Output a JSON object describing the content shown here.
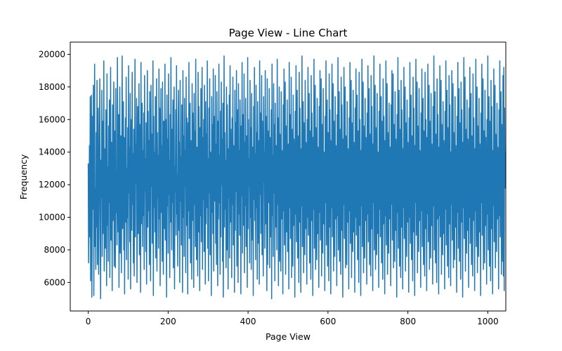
{
  "chart_data": {
    "type": "line",
    "title": "Page View - Line Chart",
    "xlabel": "Page View",
    "ylabel": "Frequency",
    "xlim": [
      -45,
      1045
    ],
    "ylim": [
      4250,
      20750
    ],
    "x_ticks": [
      0,
      200,
      400,
      600,
      800,
      1000
    ],
    "y_ticks": [
      6000,
      8000,
      10000,
      12000,
      14000,
      16000,
      18000,
      20000
    ],
    "grid": false,
    "legend": "none",
    "series": [
      {
        "color": "#1f77b4",
        "x_start": 0,
        "x_step": 1,
        "values": [
          13300,
          7200,
          9800,
          14400,
          8800,
          17400,
          6100,
          12600,
          17500,
          5100,
          9900,
          16200,
          10500,
          18100,
          5200,
          13800,
          19400,
          8200,
          11800,
          6800,
          15200,
          9400,
          18400,
          7100,
          12300,
          16700,
          6500,
          10600,
          14800,
          18500,
          8700,
          5000,
          13500,
          11200,
          17800,
          7600,
          15900,
          9000,
          12700,
          19600,
          6700,
          10200,
          14200,
          8100,
          16600,
          11900,
          5800,
          18800,
          9500,
          13100,
          7300,
          15600,
          10900,
          17200,
          6300,
          12000,
          19200,
          8600,
          14600,
          11400,
          5500,
          16900,
          9800,
          13700,
          18300,
          7000,
          11100,
          15300,
          6900,
          17900,
          10300,
          12900,
          8300,
          19800,
          14000,
          9100,
          16300,
          5700,
          12400,
          18000,
          7800,
          10700,
          15000,
          6600,
          13400,
          19900,
          9300,
          11700,
          17100,
          8000,
          14900,
          5300,
          12200,
          16100,
          9700,
          18600,
          7400,
          13000,
          10000,
          15500,
          6200,
          19300,
          11500,
          14300,
          8500,
          17600,
          5600,
          12800,
          16000,
          9200,
          18900,
          10800,
          13900,
          7200,
          15400,
          6400,
          11000,
          19700,
          8800,
          14500,
          12100,
          17300,
          6000,
          10500,
          16800,
          9000,
          13200,
          18200,
          7700,
          15700,
          11300,
          5400,
          19500,
          9600,
          12600,
          17000,
          8200,
          14100,
          10100,
          16400,
          6800,
          18700,
          11600,
          13600,
          7900,
          15800,
          5900,
          12300,
          19000,
          9400,
          16500,
          10400,
          14700,
          7100,
          17700,
          12500,
          6100,
          18100,
          11900,
          15100,
          8400,
          13300,
          19600,
          5200,
          16200,
          10600,
          14000,
          9100,
          17400,
          7500,
          12700,
          18500,
          6700,
          15200,
          11200,
          13800,
          8100,
          19100,
          9900,
          16700,
          5800,
          12400,
          17900,
          10300,
          14400,
          7300,
          18300,
          11800,
          6500,
          15900,
          13000,
          9300,
          19400,
          8600,
          16000,
          12000,
          5100,
          17500,
          10700,
          14800,
          7800,
          18800,
          11400,
          13500,
          6300,
          16300,
          9700,
          19800,
          12900,
          8000,
          15400,
          10900,
          17200,
          6900,
          14200,
          18000,
          5600,
          13100,
          11600,
          16600,
          8900,
          19300,
          10200,
          12600,
          7000,
          15600,
          17800,
          9200,
          14600,
          6000,
          18400,
          11000,
          13700,
          8300,
          16900,
          12300,
          5400,
          19000,
          10000,
          15000,
          7600,
          17300,
          11900,
          14100,
          6600,
          18600,
          9500,
          16100,
          12800,
          5300,
          15800,
          10400,
          19500,
          8700,
          13400,
          17000,
          7200,
          14700,
          11300,
          6200,
          18200,
          9800,
          16400,
          12100,
          5700,
          17600,
          10800,
          15300,
          8200,
          19700,
          13200,
          7400,
          14300,
          11700,
          6400,
          18900,
          9100,
          16800,
          12500,
          5500,
          15500,
          10100,
          17900,
          8500,
          13900,
          19200,
          6800,
          14900,
          11100,
          16000,
          7900,
          18100,
          12200,
          5900,
          17100,
          9600,
          15100,
          10600,
          19600,
          8100,
          13600,
          6100,
          16700,
          11500,
          18500,
          7700,
          14000,
          12400,
          5200,
          17400,
          10300,
          15700,
          9000,
          19100,
          6700,
          13300,
          16200,
          11000,
          18700,
          8400,
          14500,
          7100,
          17700,
          12700,
          5800,
          15900,
          9900,
          19400,
          10900,
          13800,
          6500,
          16500,
          8800,
          18300,
          12000,
          14800,
          7300,
          17000,
          5100,
          11800,
          19900,
          9400,
          15200,
          10500,
          13500,
          6900,
          18000,
          8000,
          16900,
          12600,
          5600,
          14200,
          11200,
          17500,
          7500,
          19300,
          9700,
          15400,
          13000,
          6300,
          16100,
          10800,
          18600,
          8300,
          14400,
          12300,
          5400,
          17800,
          9200,
          15800,
          11600,
          19000,
          7000,
          13700,
          16600,
          6000,
          18200,
          10200,
          14100,
          8900,
          17200,
          12900,
          5300,
          15600,
          11300,
          19500,
          7800,
          13200,
          16300,
          9500,
          18800,
          6600,
          14600,
          10700,
          17300,
          8200,
          15000,
          12100,
          5700,
          19800,
          9300,
          16000,
          11900,
          13600,
          7200,
          18400,
          10000,
          15500,
          6800,
          17600,
          12500,
          8600,
          14300,
          5200,
          16800,
          11100,
          19200,
          9800,
          13900,
          7400,
          18100,
          10600,
          15200,
          6200,
          17100,
          12800,
          8400,
          14700,
          5900,
          19600,
          11400,
          16400,
          9000,
          13100,
          18700,
          7700,
          15900,
          10300,
          6400,
          17400,
          12200,
          14000,
          8100,
          19000,
          9600,
          16200,
          11700,
          5500,
          18500,
          7100,
          13400,
          15300,
          10900,
          17900,
          6900,
          14900,
          12400,
          8800,
          16600,
          5000,
          19400,
          10100,
          13800,
          7600,
          18200,
          11500,
          15700,
          6100,
          17000,
          9400,
          14400,
          12600,
          8000,
          19700,
          10800,
          16100,
          5800,
          13300,
          18000,
          7300,
          15100,
          11000,
          6700,
          17700,
          9900,
          14100,
          12900,
          5300,
          16900,
          10400,
          19100,
          8300,
          13600,
          18300,
          6500,
          15600,
          11800,
          9100,
          17200,
          7900,
          14500,
          12000,
          5600,
          19500,
          10600,
          16300,
          8700,
          13000,
          18600,
          6300,
          15400,
          11300,
          7000,
          17500,
          9500,
          14800,
          12700,
          5100,
          16500,
          10200,
          19300,
          8500,
          13900,
          17800,
          7500,
          15000,
          11100,
          6000,
          18900,
          9700,
          16700,
          12300,
          5400,
          14200,
          10700,
          19900,
          8200,
          13500,
          17100,
          6600,
          15800,
          11600,
          7700,
          18400,
          9300,
          14600,
          12500,
          5900,
          16000,
          10000,
          19200,
          8900,
          13200,
          17600,
          7200,
          15300,
          11400,
          6200,
          18700,
          9800,
          16400,
          12100,
          5200,
          14900,
          10500,
          19700,
          8100,
          13700,
          18100,
          6800,
          15500,
          11700,
          7400,
          17300,
          9000,
          14300,
          12800,
          5700,
          16800,
          10300,
          19000,
          8600,
          13100,
          18500,
          6400,
          15700,
          11200,
          7800,
          17900,
          9600,
          14000,
          12400,
          5500,
          16200,
          10900,
          19600,
          8300,
          13800,
          17200,
          7000,
          15200,
          11900,
          6100,
          18800,
          9400,
          16600,
          12200,
          5300,
          14700,
          10600,
          19400,
          8800,
          13400,
          18200,
          6700,
          15900,
          11000,
          7600,
          17400,
          9900,
          14400,
          12600,
          5800,
          16300,
          10100,
          19800,
          8000,
          13000,
          17700,
          7300,
          15400,
          11500,
          6500,
          18600,
          9200,
          16900,
          12000,
          5100,
          14800,
          10800,
          19200,
          8700,
          13600,
          18000,
          6900,
          15000,
          11800,
          7100,
          17100,
          9700,
          14200,
          12900,
          5600,
          16100,
          10400,
          19500,
          8400,
          13300,
          18400,
          6300,
          15800,
          11100,
          7900,
          17800,
          9100,
          14600,
          12300,
          5400,
          16700,
          10000,
          19100,
          8900,
          13900,
          17500,
          7400,
          15300,
          11600,
          6000,
          18900,
          9500,
          16000,
          12700,
          5200,
          14100,
          10700,
          19700,
          8200,
          13100,
          18300,
          6600,
          15600,
          11300,
          7500,
          17300,
          9800,
          14900,
          12100,
          5900,
          16400,
          10200,
          19300,
          8500,
          13700,
          17900,
          7100,
          15100,
          11900,
          6400,
          18700,
          9300,
          16800,
          12500,
          5500,
          14500,
          10900,
          19900,
          8000,
          13500,
          18100,
          6800,
          15500,
          11400,
          7700,
          17600,
          9000,
          14000,
          12800,
          5700,
          16500,
          10500,
          19400,
          8800,
          13200,
          17400,
          7200,
          15900,
          11000,
          6200,
          18500,
          9600,
          16200,
          12200,
          5300,
          14700,
          10100,
          19600,
          8300,
          13800,
          18200,
          6500,
          15200,
          11700,
          7800,
          17000,
          9900,
          14300,
          12600,
          5800,
          16900,
          10800,
          19000,
          8600,
          13400,
          18800,
          6900,
          15700,
          11200,
          7300,
          17700,
          9200,
          14800,
          12000,
          5100,
          16300,
          10300,
          19800,
          8100,
          13000,
          17800,
          7000,
          15400,
          11800,
          6300,
          18400,
          9400,
          16600,
          12400,
          5600,
          14200,
          10600,
          19200,
          8700,
          13600,
          18000,
          6700,
          15800,
          11300,
          7600,
          17200,
          9700,
          14600,
          12900,
          5400,
          16100,
          10000,
          19500,
          8400,
          13900,
          17500,
          7400,
          15000,
          11500,
          6100,
          18600,
          9100,
          16700,
          12300,
          5200,
          14400,
          10900,
          19700,
          8900,
          13300,
          18300,
          6600,
          15600,
          11100,
          7900,
          17900,
          9800,
          14100,
          12700,
          5700,
          16400,
          10400,
          19100,
          8200,
          13700,
          17300,
          7100,
          15300,
          11900,
          6400,
          18900,
          9300,
          16000,
          12100,
          5500,
          14900,
          10200,
          19400,
          8500,
          13100,
          18100,
          6800,
          15900,
          11600,
          7500,
          17600,
          9500,
          14500,
          12500,
          5900,
          16800,
          10700,
          19900,
          8000,
          13500,
          17700,
          7200,
          15100,
          11400,
          6000,
          18500,
          9900,
          16300,
          12800,
          5300,
          14300,
          10100,
          19300,
          8800,
          13800,
          18400,
          6500,
          15700,
          11000,
          7700,
          17100,
          9000,
          14700,
          12200,
          5600,
          16500,
          10500,
          19600,
          8300,
          13200,
          17800,
          7000,
          15500,
          11700,
          6300,
          18700,
          9600,
          16900,
          12400,
          5800,
          14000,
          10800,
          19000,
          8600,
          13600,
          18200,
          6900,
          15200,
          11200,
          7400,
          17400,
          9400,
          14400,
          12600,
          5400,
          16200,
          10300,
          19500,
          8100,
          13400,
          17900,
          7300,
          15800,
          11800,
          6200,
          18300,
          9700,
          16600,
          12000,
          5100,
          14600,
          10600,
          19800,
          8700,
          13000,
          18600,
          6700,
          15400,
          11500,
          7800,
          17200,
          9200,
          14800,
          12900,
          5700,
          16700,
          10000,
          19200,
          8400,
          13900,
          17600,
          7100,
          15000,
          11300,
          6400,
          18800,
          9800,
          16100,
          12300,
          5500,
          14200,
          10400,
          19700,
          8200,
          13300,
          18000,
          6600,
          15600,
          11900,
          7600,
          17300,
          9100,
          14500,
          12700,
          5200,
          16400,
          10900,
          19400,
          8900,
          13700,
          18500,
          6800,
          15300,
          11100,
          7200,
          17800,
          9500,
          14900,
          12100,
          5900,
          16000,
          10200,
          19900,
          8000,
          13100,
          17400,
          7000,
          15900,
          11600,
          6100,
          18400,
          9300,
          16800,
          12500,
          5300,
          14100,
          10700,
          19100,
          8500,
          13500,
          18100,
          6900,
          15100,
          11400,
          7900,
          17000,
          9900,
          14300,
          12800,
          5600,
          16600,
          10100,
          19600,
          8800,
          13800,
          17700,
          6500,
          15700,
          11000,
          7300,
          18700,
          6400,
          19200,
          5500,
          16700,
          11800,
          14000,
          13600
        ]
      }
    ]
  }
}
